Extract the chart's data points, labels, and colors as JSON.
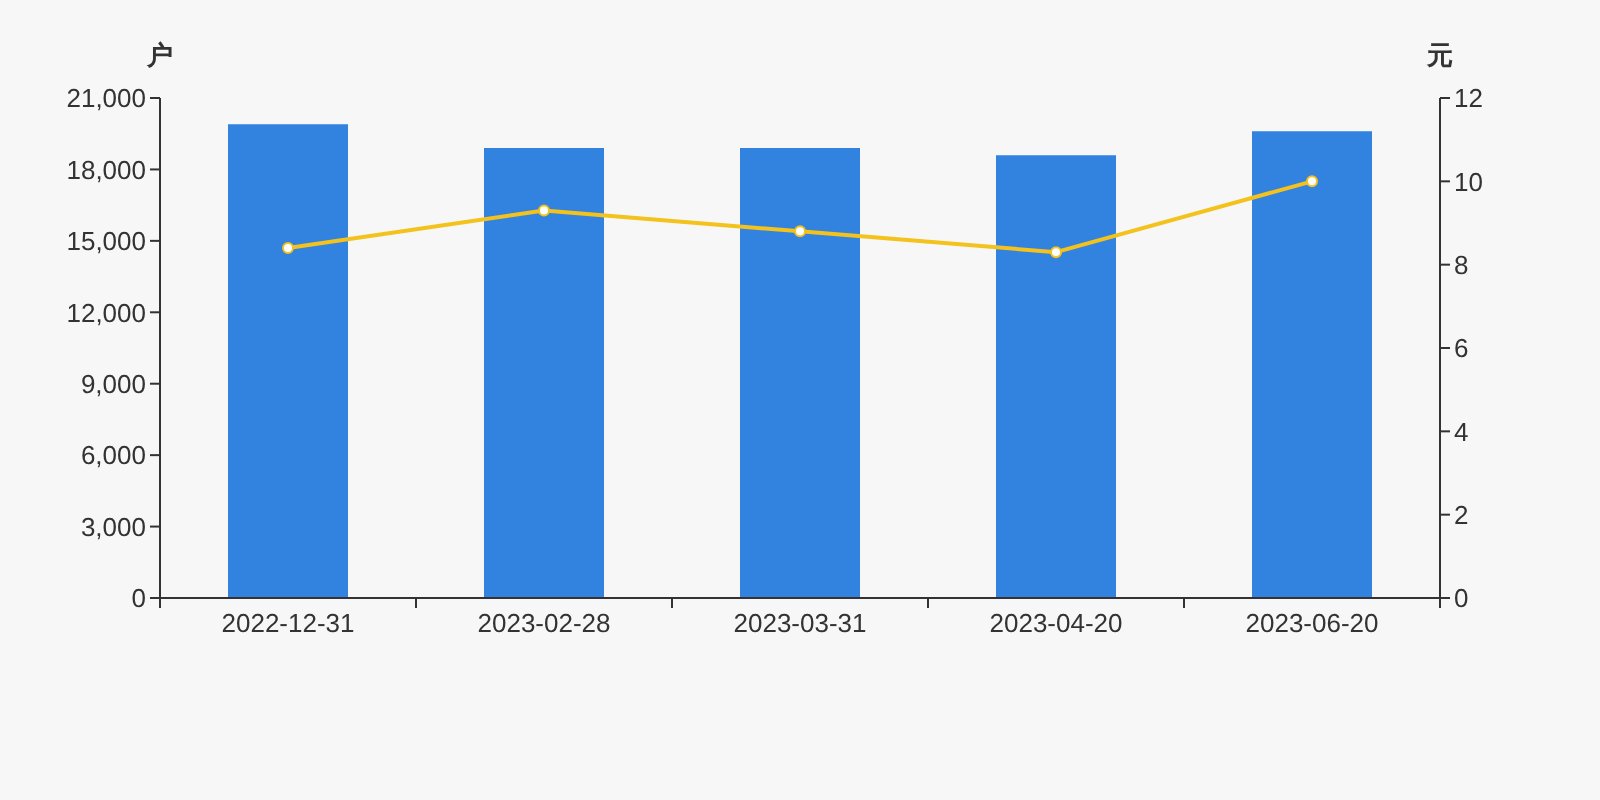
{
  "chart_data": {
    "type": "bar",
    "ylabel": "户",
    "y2label": "元",
    "categories": [
      "2022-12-31",
      "2023-02-28",
      "2023-03-31",
      "2023-04-20",
      "2023-06-20"
    ],
    "series": [
      {
        "color": "#3282e0",
        "values": [
          19900,
          18900,
          18900,
          18600,
          19600
        ]
      },
      {
        "type": "line",
        "axis": "y2",
        "color": "#f3c21d",
        "values": [
          8.4,
          9.3,
          8.8,
          8.3,
          10.0
        ]
      }
    ],
    "ylim": [
      0,
      21000
    ],
    "yticks": [
      0,
      {
        "value": 3000,
        "label": "3,000"
      },
      {
        "value": 6000,
        "label": "6,000"
      },
      {
        "value": 9000,
        "label": "9,000"
      },
      {
        "value": 12000,
        "label": "12,000"
      },
      {
        "value": 15000,
        "label": "15,000"
      },
      {
        "value": 18000,
        "label": "18,000"
      },
      {
        "value": 21000,
        "label": "21,000"
      }
    ],
    "y2lim": [
      0,
      12
    ],
    "y2ticks": [
      0,
      2,
      4,
      6,
      8,
      10,
      12
    ],
    "marker": "circle"
  }
}
